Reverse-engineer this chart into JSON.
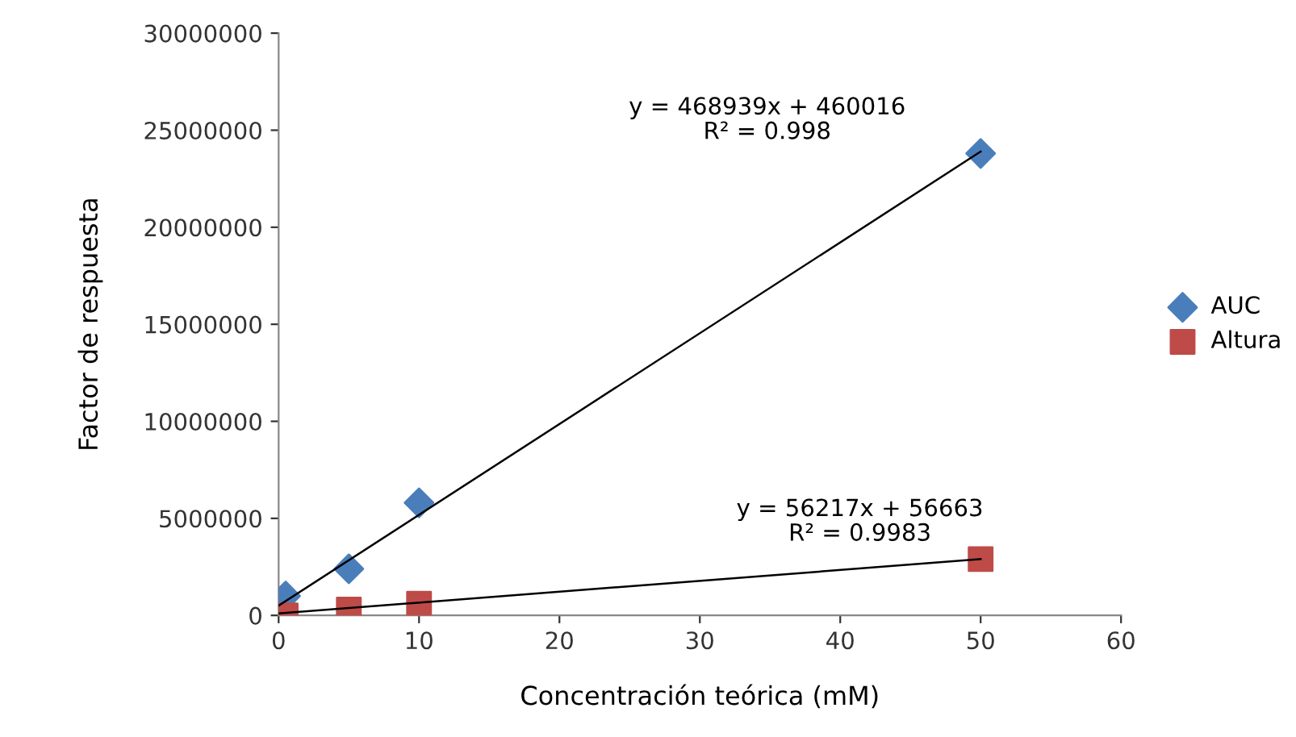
{
  "chart_data": {
    "type": "scatter",
    "xlabel": "Concentración teórica (mM)",
    "ylabel": "Factor de respuesta",
    "xlim": [
      0,
      60
    ],
    "xticks": [
      0,
      10,
      20,
      30,
      40,
      50,
      60
    ],
    "ylim": [
      0,
      30000000
    ],
    "yticks": [
      0,
      5000000,
      10000000,
      15000000,
      20000000,
      25000000,
      30000000
    ],
    "grid": false,
    "legend": "right",
    "series": [
      {
        "name": "AUC",
        "color": "#4a7ebb",
        "marker": "diamond",
        "x": [
          0.5,
          5,
          10,
          50
        ],
        "values": [
          1000000,
          2400000,
          5800000,
          23800000
        ]
      },
      {
        "name": "Altura",
        "color": "#be4b48",
        "marker": "square",
        "x": [
          0.5,
          5,
          10,
          50
        ],
        "values": [
          0,
          300000,
          600000,
          2900000
        ]
      },
      {
        "type": "line",
        "color": "#000000",
        "x": [
          0,
          50
        ],
        "values": [
          500000,
          23900000
        ]
      },
      {
        "type": "line",
        "color": "#000000",
        "x": [
          0,
          50
        ],
        "values": [
          100000,
          2900000
        ]
      }
    ],
    "annotations": [
      "y = 468939x + 460016\nR² = 0.998",
      "y = 56217x + 56663\nR² = 0.9983"
    ]
  }
}
